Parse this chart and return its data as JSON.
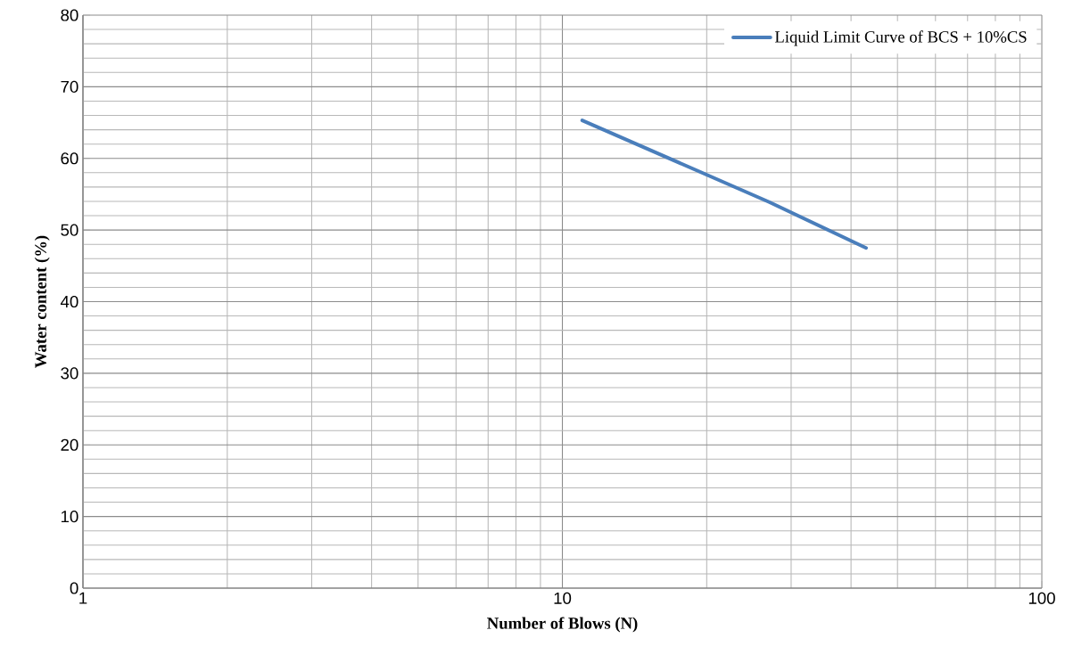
{
  "chart_data": {
    "type": "line",
    "xlabel": "Number of Blows (N)",
    "ylabel": "Water content (%)",
    "x": [
      11,
      27,
      43
    ],
    "series": [
      {
        "name": "Liquid Limit Curve of BCS + 10%CS",
        "color": "#4a7ebb",
        "values": [
          65.3,
          53.9,
          47.5
        ]
      }
    ],
    "log": "x",
    "xlim": [
      1,
      100
    ],
    "xticks": [
      1,
      10,
      100
    ],
    "ylim": [
      0,
      80
    ],
    "yticks": [
      0,
      10,
      20,
      30,
      40,
      50,
      60,
      70,
      80
    ],
    "grid": true,
    "legend": "top right"
  }
}
